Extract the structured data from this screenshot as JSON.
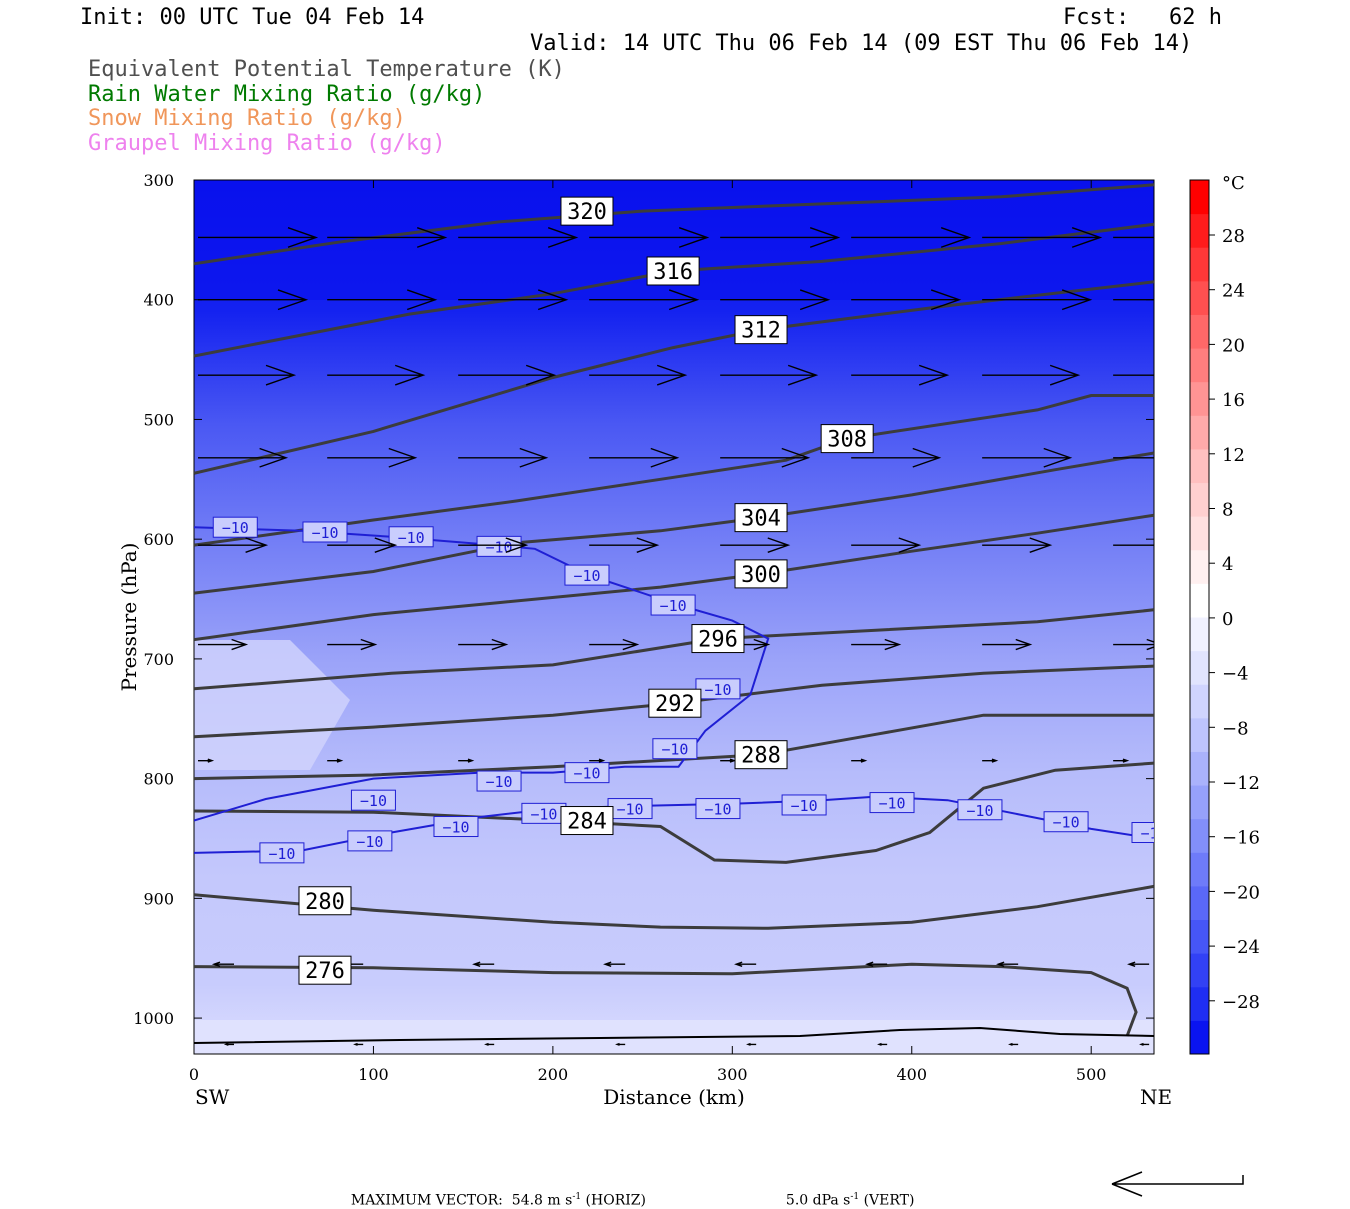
{
  "header": {
    "init": "Init: 00 UTC Tue 04 Feb 14",
    "fcst": "Fcst:   62 h",
    "valid": "Valid: 14 UTC Thu 06 Feb 14 (09 EST Thu 06 Feb 14)",
    "fields": [
      {
        "label": "Equivalent Potential Temperature (K)",
        "color": "#505050"
      },
      {
        "label": "Rain Water Mixing Ratio (g/kg)",
        "color": "#007a00"
      },
      {
        "label": "Snow Mixing Ratio (g/kg)",
        "color": "#f0965a"
      },
      {
        "label": "Graupel Mixing Ratio (g/kg)",
        "color": "#ee82ee"
      }
    ]
  },
  "chart_data": {
    "type": "contour",
    "xlabel": "Distance (km)",
    "ylabel": "Pressure (hPa)",
    "xlim": [
      0,
      535
    ],
    "ylim": [
      1030,
      300
    ],
    "x_ticks": [
      0,
      100,
      200,
      300,
      400,
      500
    ],
    "y_ticks": [
      300,
      400,
      500,
      600,
      700,
      800,
      900,
      1000
    ],
    "left_end_label": "SW",
    "right_end_label": "NE",
    "theta_e_contours": [
      {
        "label": "320",
        "label_at": [
          219,
          326
        ],
        "points": [
          [
            0,
            370
          ],
          [
            80,
            352
          ],
          [
            170,
            335
          ],
          [
            250,
            326
          ],
          [
            350,
            320
          ],
          [
            450,
            314
          ],
          [
            535,
            304
          ]
        ]
      },
      {
        "label": "316",
        "label_at": [
          267,
          376
        ],
        "points": [
          [
            0,
            447
          ],
          [
            120,
            412
          ],
          [
            200,
            395
          ],
          [
            267,
            376
          ],
          [
            350,
            368
          ],
          [
            450,
            353
          ],
          [
            535,
            337
          ]
        ]
      },
      {
        "label": "312",
        "label_at": [
          316,
          425
        ],
        "points": [
          [
            0,
            545
          ],
          [
            100,
            510
          ],
          [
            200,
            465
          ],
          [
            267,
            440
          ],
          [
            316,
            425
          ],
          [
            420,
            405
          ],
          [
            535,
            385
          ]
        ]
      },
      {
        "label": "308",
        "label_at": [
          364,
          516
        ],
        "points": [
          [
            0,
            605
          ],
          [
            100,
            584
          ],
          [
            180,
            568
          ],
          [
            260,
            550
          ],
          [
            330,
            534
          ],
          [
            364,
            516
          ],
          [
            470,
            492
          ],
          [
            500,
            480
          ],
          [
            535,
            480
          ]
        ]
      },
      {
        "label": "304",
        "label_at": [
          316,
          582
        ],
        "points": [
          [
            0,
            645
          ],
          [
            100,
            627
          ],
          [
            180,
            603
          ],
          [
            260,
            593
          ],
          [
            316,
            582
          ],
          [
            400,
            563
          ],
          [
            480,
            542
          ],
          [
            535,
            528
          ]
        ]
      },
      {
        "label": "300",
        "label_at": [
          316,
          629
        ],
        "points": [
          [
            0,
            684
          ],
          [
            100,
            663
          ],
          [
            170,
            653
          ],
          [
            260,
            640
          ],
          [
            316,
            629
          ],
          [
            400,
            610
          ],
          [
            470,
            595
          ],
          [
            535,
            580
          ]
        ]
      },
      {
        "label": "296",
        "label_at": [
          292,
          683
        ],
        "points": [
          [
            0,
            725
          ],
          [
            110,
            712
          ],
          [
            200,
            705
          ],
          [
            292,
            683
          ],
          [
            380,
            676
          ],
          [
            470,
            669
          ],
          [
            535,
            659
          ]
        ]
      },
      {
        "label": "292",
        "label_at": [
          268,
          737
        ],
        "points": [
          [
            0,
            765
          ],
          [
            100,
            757
          ],
          [
            200,
            747
          ],
          [
            268,
            737
          ],
          [
            350,
            722
          ],
          [
            440,
            712
          ],
          [
            535,
            706
          ]
        ]
      },
      {
        "label": "288",
        "label_at": [
          316,
          780
        ],
        "points": [
          [
            0,
            800
          ],
          [
            100,
            797
          ],
          [
            200,
            790
          ],
          [
            316,
            780
          ],
          [
            380,
            763
          ],
          [
            440,
            747
          ],
          [
            535,
            747
          ]
        ]
      },
      {
        "label": "284",
        "label_at": [
          219,
          835
        ],
        "points": [
          [
            0,
            827
          ],
          [
            100,
            828
          ],
          [
            200,
            835
          ],
          [
            260,
            840
          ],
          [
            290,
            868
          ],
          [
            330,
            870
          ],
          [
            380,
            860
          ],
          [
            410,
            845
          ],
          [
            440,
            808
          ],
          [
            480,
            793
          ],
          [
            535,
            787
          ]
        ]
      },
      {
        "label": "280",
        "label_at": [
          73,
          902
        ],
        "points": [
          [
            0,
            897
          ],
          [
            100,
            910
          ],
          [
            200,
            920
          ],
          [
            260,
            924
          ],
          [
            320,
            925
          ],
          [
            400,
            920
          ],
          [
            470,
            907
          ],
          [
            535,
            890
          ]
        ]
      },
      {
        "label": "276",
        "label_at": [
          73,
          960
        ],
        "points": [
          [
            0,
            957
          ],
          [
            100,
            958
          ],
          [
            200,
            962
          ],
          [
            300,
            963
          ],
          [
            400,
            955
          ],
          [
            450,
            957
          ],
          [
            500,
            962
          ],
          [
            520,
            975
          ],
          [
            525,
            995
          ],
          [
            520,
            1015
          ]
        ]
      }
    ],
    "temperature_contour_c": -10,
    "colorbar": {
      "unit": "°C",
      "tick_labels": [
        "28",
        "24",
        "20",
        "16",
        "12",
        "8",
        "4",
        "0",
        "−4",
        "−8",
        "−12",
        "−16",
        "−20",
        "−24",
        "−28"
      ],
      "colors": [
        "#0a14f0",
        "#1f2ef3",
        "#3241f5",
        "#4656f7",
        "#5a68f8",
        "#6e7bf9",
        "#828ffa",
        "#96a1fb",
        "#aab2fc",
        "#bec4fd",
        "#d0d4fe",
        "#e1e4fe",
        "#f0f1ff",
        "#ffffff",
        "#fff0f0",
        "#ffe0e0",
        "#ffd0d0",
        "#ffc0c0",
        "#ffaaaa",
        "#ff9494",
        "#ff7e7e",
        "#ff6868",
        "#ff5050",
        "#ff3838",
        "#ff1c1c",
        "#ff0000"
      ]
    }
  },
  "footer": {
    "max_vector": "MAXIMUM VECTOR:  54.8 m s",
    "horiz": " (HORIZ)",
    "vert": "5.0 dPa s",
    "vert_tail": " (VERT)",
    "exp": "-1"
  }
}
